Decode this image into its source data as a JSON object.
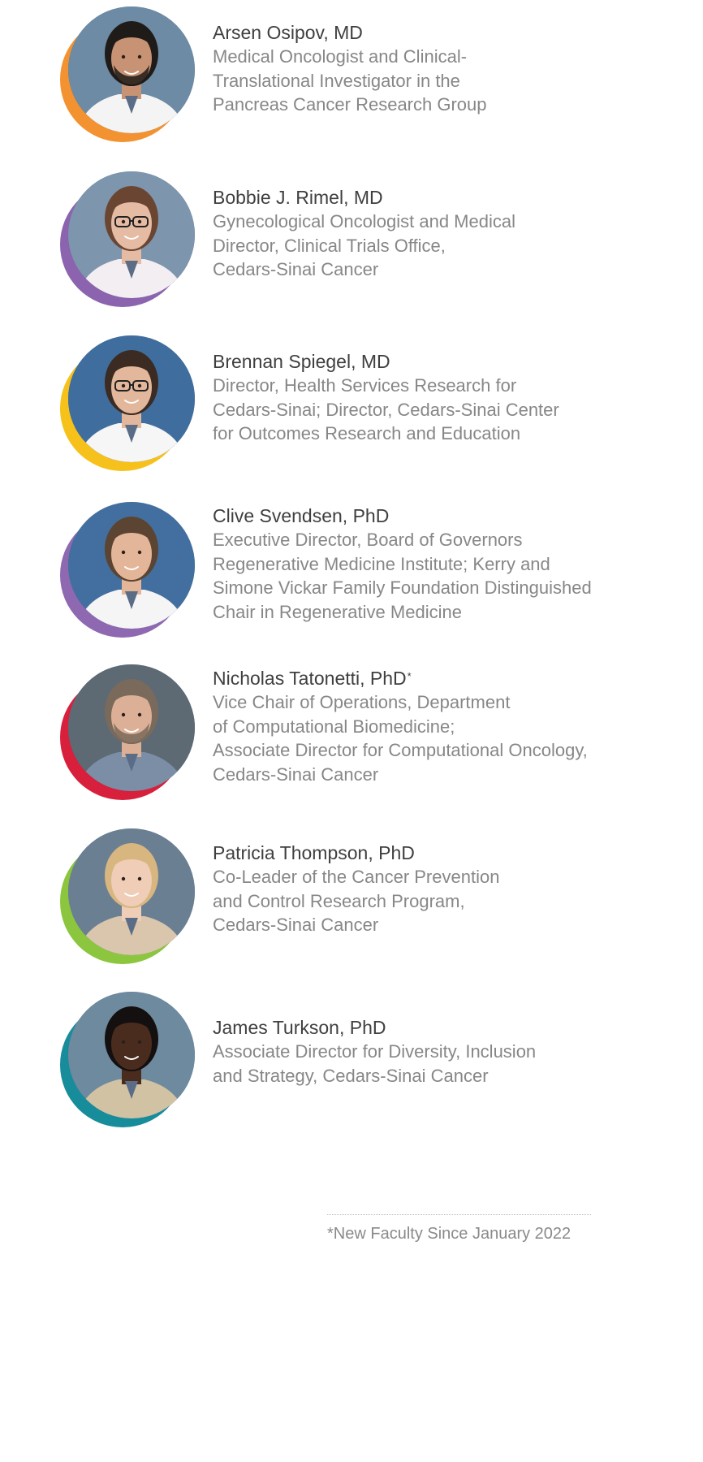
{
  "faculty": [
    {
      "name": "Arsen Osipov, MD",
      "superscript": "",
      "title_lines": [
        "Medical Oncologist and Clinical-",
        "Translational Investigator in the",
        "Pancreas Cancer Research Group"
      ],
      "ring_color": "#F39230",
      "skin": "#c89374",
      "hair": "#1f1b18",
      "clothing": "#f4f4f4",
      "backdrop": "#6d8ba4",
      "beard": true,
      "glasses": false
    },
    {
      "name": "Bobbie J. Rimel, MD",
      "superscript": "",
      "title_lines": [
        "Gynecological Oncologist and Medical",
        "Director, Clinical Trials Office,",
        "Cedars-Sinai Cancer"
      ],
      "ring_color": "#8B63AE",
      "skin": "#e5bba4",
      "hair": "#6a4632",
      "clothing": "#f3eef1",
      "backdrop": "#7d95ad",
      "beard": false,
      "glasses": true
    },
    {
      "name": "Brennan Spiegel, MD",
      "superscript": "",
      "title_lines": [
        "Director, Health Services Research for",
        "Cedars-Sinai; Director, Cedars-Sinai Center",
        "for Outcomes Research and Education"
      ],
      "ring_color": "#F6C11A",
      "skin": "#e2b79c",
      "hair": "#3b2b22",
      "clothing": "#f6f6f6",
      "backdrop": "#3f6e9e",
      "beard": false,
      "glasses": true
    },
    {
      "name": "Clive Svendsen, PhD",
      "superscript": "",
      "title_lines": [
        "Executive Director, Board of Governors",
        "Regenerative Medicine Institute; Kerry and",
        "Simone Vickar Family Foundation Distinguished",
        "Chair in Regenerative Medicine"
      ],
      "ring_color": "#8E68B1",
      "skin": "#e4b699",
      "hair": "#5b4431",
      "clothing": "#f5f5f5",
      "backdrop": "#426f9f",
      "beard": false,
      "glasses": false
    },
    {
      "name": "Nicholas Tatonetti, PhD",
      "superscript": "*",
      "title_lines": [
        "Vice Chair of Operations, Department",
        "of Computational Biomedicine;",
        "Associate Director for Computational Oncology,",
        "Cedars-Sinai Cancer"
      ],
      "ring_color": "#D81F3C",
      "skin": "#dcb096",
      "hair": "#7a6a5c",
      "clothing": "#7b8ea6",
      "backdrop": "#5d6a74",
      "beard": true,
      "glasses": false
    },
    {
      "name": "Patricia Thompson, PhD",
      "superscript": "",
      "title_lines": [
        "Co-Leader of the Cancer Prevention",
        "and Control Research Program,",
        "Cedars-Sinai Cancer"
      ],
      "ring_color": "#8CC63F",
      "skin": "#efcdb7",
      "hair": "#d7b67f",
      "clothing": "#d9c6ad",
      "backdrop": "#6b7f93",
      "beard": false,
      "glasses": false
    },
    {
      "name": "James Turkson, PhD",
      "superscript": "",
      "title_lines": [
        "Associate Director for Diversity, Inclusion",
        "and Strategy, Cedars-Sinai Cancer"
      ],
      "ring_color": "#178C9A",
      "skin": "#4a2c1f",
      "hair": "#151010",
      "clothing": "#d1c2a3",
      "backdrop": "#6e8a9f",
      "beard": false,
      "glasses": false
    }
  ],
  "footnote": "*New Faculty Since January 2022"
}
